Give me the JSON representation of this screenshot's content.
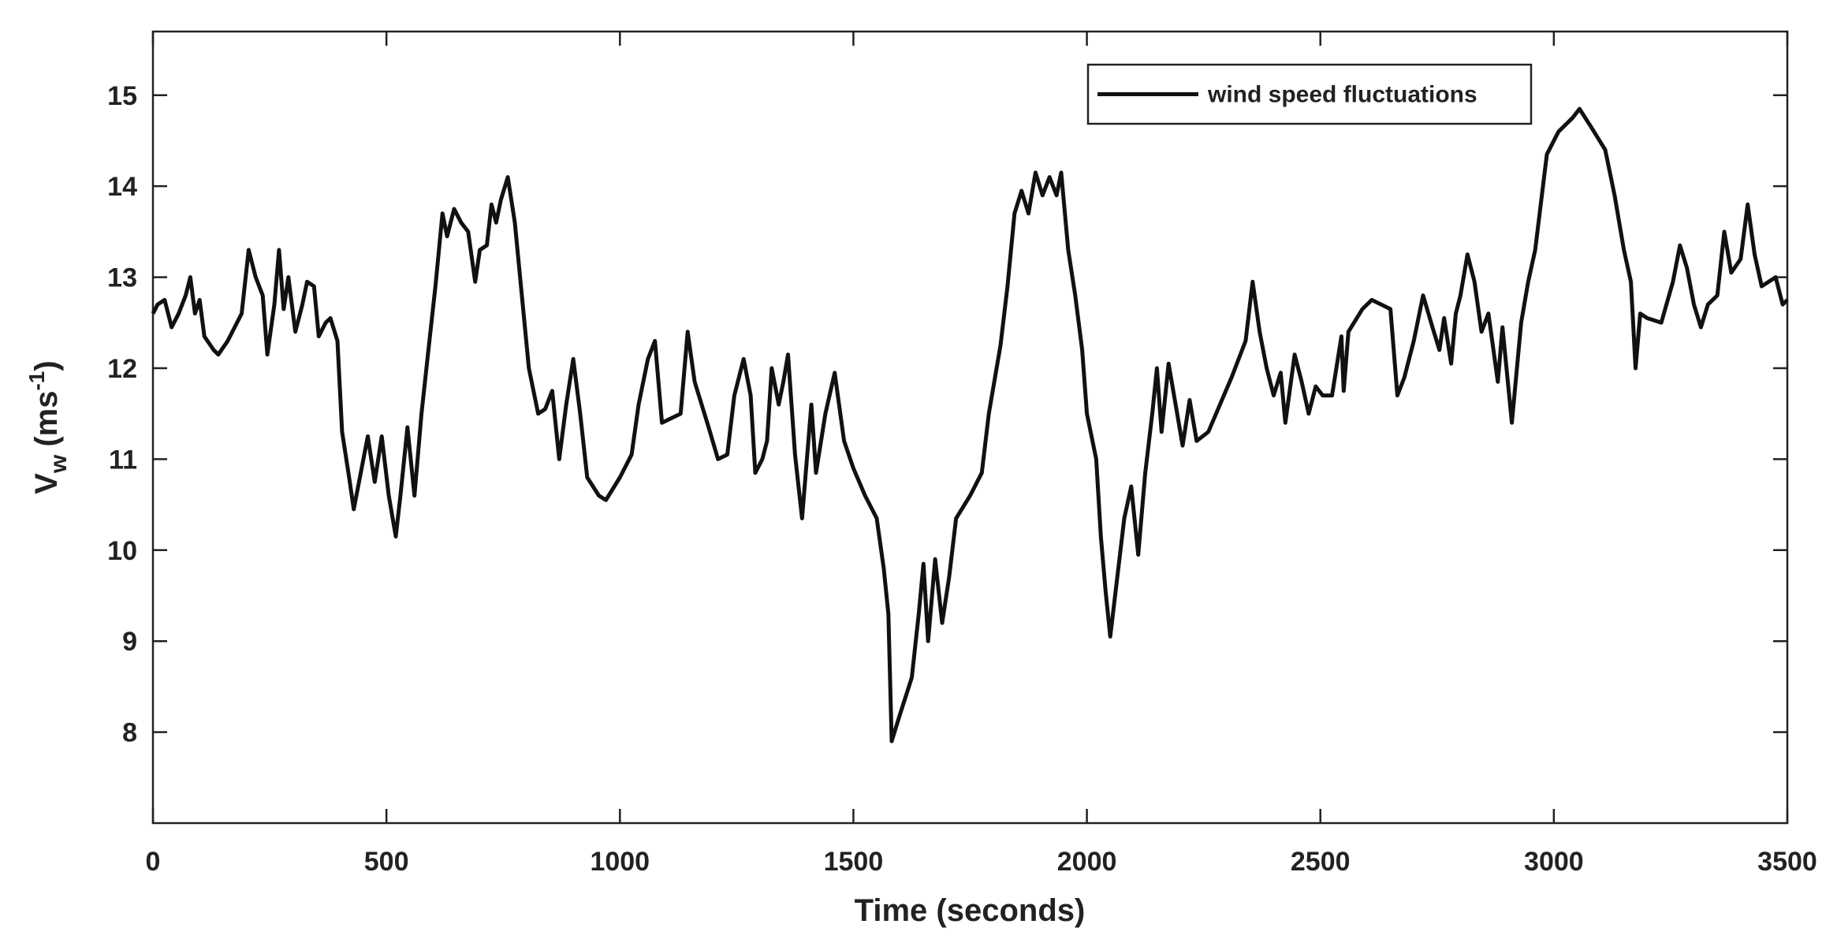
{
  "chart_data": {
    "type": "line",
    "xlabel": "Time (seconds)",
    "ylabel": {
      "base": "V",
      "sub": "w",
      "unit": "(ms",
      "sup": "-1",
      "close": ")"
    },
    "xlim": [
      0,
      3500
    ],
    "xticks": [
      0,
      500,
      1000,
      1500,
      2000,
      2500,
      3000,
      3500
    ],
    "ylim": [
      7,
      15.7
    ],
    "yticks": [
      8,
      9,
      10,
      11,
      12,
      13,
      14,
      15
    ],
    "grid": false,
    "legend": "upper right",
    "x": [
      0,
      10,
      25,
      40,
      55,
      70,
      80,
      90,
      100,
      110,
      130,
      140,
      160,
      190,
      205,
      220,
      235,
      245,
      260,
      270,
      280,
      290,
      305,
      320,
      330,
      345,
      355,
      370,
      380,
      395,
      405,
      420,
      430,
      445,
      460,
      475,
      490,
      505,
      520,
      530,
      545,
      560,
      575,
      590,
      605,
      620,
      630,
      645,
      660,
      675,
      690,
      700,
      715,
      725,
      735,
      745,
      760,
      775,
      790,
      805,
      825,
      840,
      855,
      870,
      885,
      900,
      915,
      930,
      955,
      970,
      1000,
      1025,
      1040,
      1060,
      1075,
      1090,
      1110,
      1130,
      1145,
      1160,
      1190,
      1210,
      1230,
      1245,
      1265,
      1280,
      1290,
      1305,
      1315,
      1325,
      1340,
      1350,
      1360,
      1375,
      1390,
      1410,
      1420,
      1440,
      1460,
      1480,
      1500,
      1525,
      1550,
      1565,
      1575,
      1582,
      1600,
      1625,
      1640,
      1650,
      1660,
      1675,
      1690,
      1705,
      1720,
      1750,
      1775,
      1790,
      1815,
      1830,
      1845,
      1860,
      1875,
      1890,
      1905,
      1920,
      1935,
      1945,
      1960,
      1975,
      1990,
      2000,
      2020,
      2030,
      2040,
      2050,
      2065,
      2080,
      2095,
      2110,
      2125,
      2140,
      2150,
      2160,
      2175,
      2190,
      2205,
      2220,
      2235,
      2260,
      2285,
      2310,
      2340,
      2355,
      2370,
      2385,
      2400,
      2415,
      2425,
      2445,
      2460,
      2475,
      2490,
      2505,
      2525,
      2545,
      2550,
      2560,
      2590,
      2610,
      2650,
      2665,
      2680,
      2700,
      2720,
      2740,
      2755,
      2765,
      2780,
      2790,
      2800,
      2815,
      2830,
      2845,
      2860,
      2880,
      2890,
      2910,
      2930,
      2945,
      2960,
      2985,
      3010,
      3040,
      3055,
      3080,
      3110,
      3130,
      3150,
      3165,
      3175,
      3185,
      3200,
      3230,
      3255,
      3270,
      3285,
      3300,
      3315,
      3330,
      3350,
      3365,
      3380,
      3400,
      3415,
      3430,
      3445,
      3460,
      3475,
      3490,
      3500
    ],
    "series": [
      {
        "name": "wind speed fluctuations",
        "color": "#111111",
        "values": [
          12.6,
          12.7,
          12.75,
          12.45,
          12.6,
          12.8,
          13.0,
          12.6,
          12.75,
          12.35,
          12.2,
          12.15,
          12.3,
          12.6,
          13.3,
          13.0,
          12.8,
          12.15,
          12.7,
          13.3,
          12.65,
          13.0,
          12.4,
          12.7,
          12.95,
          12.9,
          12.35,
          12.5,
          12.55,
          12.3,
          11.3,
          10.8,
          10.45,
          10.85,
          11.25,
          10.75,
          11.25,
          10.6,
          10.15,
          10.6,
          11.35,
          10.6,
          11.5,
          12.2,
          12.9,
          13.7,
          13.45,
          13.75,
          13.6,
          13.5,
          12.95,
          13.3,
          13.35,
          13.8,
          13.6,
          13.85,
          14.1,
          13.6,
          12.8,
          12.0,
          11.5,
          11.55,
          11.75,
          11.0,
          11.6,
          12.1,
          11.5,
          10.8,
          10.6,
          10.55,
          10.8,
          11.05,
          11.6,
          12.1,
          12.3,
          11.4,
          11.45,
          11.5,
          12.4,
          11.85,
          11.35,
          11.0,
          11.05,
          11.7,
          12.1,
          11.7,
          10.85,
          11.0,
          11.2,
          12.0,
          11.6,
          11.85,
          12.15,
          11.05,
          10.35,
          11.6,
          10.85,
          11.5,
          11.95,
          11.2,
          10.9,
          10.6,
          10.35,
          9.8,
          9.3,
          7.9,
          8.2,
          8.6,
          9.3,
          9.85,
          9.0,
          9.9,
          9.2,
          9.7,
          10.35,
          10.6,
          10.85,
          11.5,
          12.25,
          12.9,
          13.7,
          13.95,
          13.7,
          14.15,
          13.9,
          14.1,
          13.9,
          14.15,
          13.3,
          12.8,
          12.2,
          11.5,
          11.0,
          10.15,
          9.55,
          9.05,
          9.7,
          10.35,
          10.7,
          9.95,
          10.85,
          11.5,
          12.0,
          11.3,
          12.05,
          11.6,
          11.15,
          11.65,
          11.2,
          11.3,
          11.6,
          11.9,
          12.3,
          12.95,
          12.4,
          12.0,
          11.7,
          11.95,
          11.4,
          12.15,
          11.85,
          11.5,
          11.8,
          11.7,
          11.7,
          12.35,
          11.75,
          12.4,
          12.65,
          12.75,
          12.65,
          11.7,
          11.9,
          12.3,
          12.8,
          12.45,
          12.2,
          12.55,
          12.05,
          12.6,
          12.8,
          13.25,
          12.95,
          12.4,
          12.6,
          11.85,
          12.45,
          11.4,
          12.5,
          12.95,
          13.3,
          14.35,
          14.6,
          14.75,
          14.85,
          14.65,
          14.4,
          13.9,
          13.3,
          12.95,
          12.0,
          12.6,
          12.55,
          12.5,
          12.95,
          13.35,
          13.1,
          12.7,
          12.45,
          12.7,
          12.8,
          13.5,
          13.05,
          13.2,
          13.8,
          13.25,
          12.9,
          12.95,
          13.0,
          12.7,
          12.75
        ]
      }
    ]
  }
}
